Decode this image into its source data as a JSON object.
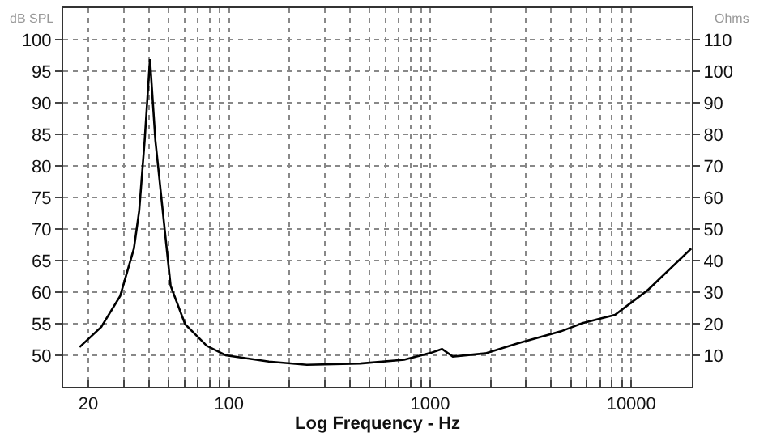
{
  "chart_data": {
    "type": "line",
    "xlabel": "Log Frequency - Hz",
    "ylabel": "dB SPL",
    "y2label": "Ohms",
    "log": "x",
    "grid": true,
    "marker": "none",
    "line_style": "solid",
    "xlim": [
      15,
      20000
    ],
    "xticks": [
      20,
      {
        "value": 30,
        "label": null
      },
      {
        "value": 40,
        "label": null
      },
      {
        "value": 50,
        "label": null
      },
      {
        "value": 60,
        "label": null
      },
      {
        "value": 70,
        "label": null
      },
      {
        "value": 80,
        "label": null
      },
      {
        "value": 90,
        "label": null
      },
      100,
      {
        "value": 200,
        "label": null
      },
      {
        "value": 300,
        "label": null
      },
      {
        "value": 400,
        "label": null
      },
      {
        "value": 500,
        "label": null
      },
      {
        "value": 600,
        "label": null
      },
      {
        "value": 700,
        "label": null
      },
      {
        "value": 800,
        "label": null
      },
      {
        "value": 900,
        "label": null
      },
      1000,
      {
        "value": 2000,
        "label": null
      },
      {
        "value": 3000,
        "label": null
      },
      {
        "value": 4000,
        "label": null
      },
      {
        "value": 5000,
        "label": null
      },
      {
        "value": 6000,
        "label": null
      },
      {
        "value": 7000,
        "label": null
      },
      {
        "value": 8000,
        "label": null
      },
      {
        "value": 9000,
        "label": null
      },
      10000
    ],
    "ylim": [
      45,
      105
    ],
    "yticks": [
      50,
      55,
      60,
      65,
      70,
      75,
      80,
      85,
      90,
      95,
      100
    ],
    "y2lim": [
      0,
      120
    ],
    "y2ticks": [
      10,
      20,
      30,
      40,
      50,
      60,
      70,
      80,
      90,
      100,
      110
    ],
    "series": [
      {
        "color": "#000000",
        "x": [
          18.1,
          23.2,
          28.8,
          33.7,
          35.8,
          38.1,
          40.5,
          43.1,
          44.5,
          47.9,
          51.3,
          60.6,
          77.6,
          96.3,
          158,
          244,
          450,
          743,
          1014,
          1146,
          1297,
          1879,
          2725,
          4477,
          5724,
          8300,
          12050,
          19860
        ],
        "values": [
          51.3,
          54.5,
          59.4,
          66.9,
          72.9,
          84,
          96.9,
          84,
          79.8,
          70,
          61,
          54.9,
          51.5,
          50,
          49,
          48.5,
          48.7,
          49.3,
          50.4,
          51,
          49.8,
          50.3,
          51.9,
          53.8,
          55.1,
          56.4,
          60.3,
          66.9
        ]
      }
    ]
  }
}
